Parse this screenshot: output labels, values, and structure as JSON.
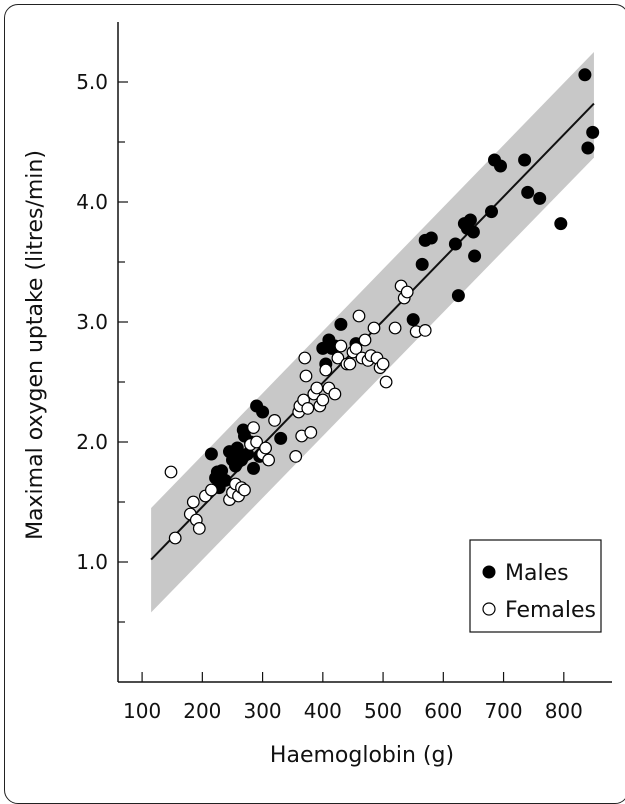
{
  "chart_data": {
    "type": "scatter",
    "xlabel": "Haemoglobin (g)",
    "ylabel": "Maximal oxygen uptake (litres/min)",
    "xlim": [
      60,
      880
    ],
    "ylim": [
      0.0,
      5.5
    ],
    "x_ticks": [
      "100",
      "200",
      "300",
      "400",
      "500",
      "600",
      "700",
      "800"
    ],
    "x_tick_values": [
      100,
      200,
      300,
      400,
      500,
      600,
      700,
      800
    ],
    "y_ticks": [
      "1.0",
      "2.0",
      "3.0",
      "4.0",
      "5.0"
    ],
    "y_tick_values": [
      1.0,
      2.0,
      3.0,
      4.0,
      5.0
    ],
    "y_minor_values": [
      0.5,
      1.5,
      2.5,
      3.5,
      4.5
    ],
    "legend_position": "bottom-right",
    "regression_line": {
      "x": [
        115,
        850
      ],
      "y": [
        1.02,
        4.82
      ]
    },
    "confidence_band": {
      "x": [
        115,
        850
      ],
      "upper": [
        1.45,
        5.25
      ],
      "lower": [
        0.58,
        4.37
      ]
    },
    "colors": {
      "band": "#c8c8c8",
      "males": "#000000",
      "females": "#ffffff"
    },
    "series": [
      {
        "name": "Males",
        "marker": "filled",
        "x": [
          215,
          222,
          225,
          228,
          232,
          238,
          245,
          250,
          255,
          258,
          262,
          265,
          268,
          270,
          275,
          280,
          285,
          290,
          295,
          300,
          330,
          400,
          405,
          410,
          415,
          420,
          430,
          455,
          550,
          565,
          570,
          580,
          620,
          625,
          635,
          640,
          645,
          650,
          652,
          680,
          685,
          695,
          735,
          740,
          760,
          795,
          835,
          840,
          848
        ],
        "y": [
          1.9,
          1.7,
          1.75,
          1.62,
          1.76,
          1.68,
          1.92,
          1.85,
          1.8,
          1.95,
          1.88,
          1.85,
          2.1,
          2.05,
          1.9,
          2.0,
          1.78,
          2.3,
          1.88,
          2.25,
          2.03,
          2.78,
          2.65,
          2.85,
          2.78,
          2.8,
          2.98,
          2.82,
          3.02,
          3.48,
          3.68,
          3.7,
          3.65,
          3.22,
          3.82,
          3.78,
          3.85,
          3.75,
          3.55,
          3.92,
          4.35,
          4.3,
          4.35,
          4.08,
          4.03,
          3.82,
          5.06,
          4.45,
          4.58
        ]
      },
      {
        "name": "Females",
        "marker": "open",
        "x": [
          148,
          155,
          180,
          185,
          190,
          195,
          205,
          215,
          245,
          250,
          255,
          260,
          265,
          270,
          280,
          285,
          290,
          300,
          305,
          310,
          320,
          355,
          360,
          362,
          365,
          368,
          370,
          372,
          375,
          380,
          385,
          390,
          395,
          400,
          405,
          410,
          420,
          425,
          430,
          440,
          445,
          450,
          455,
          460,
          465,
          470,
          475,
          480,
          485,
          490,
          495,
          500,
          505,
          520,
          530,
          535,
          540,
          555,
          570
        ],
        "y": [
          1.75,
          1.2,
          1.4,
          1.5,
          1.35,
          1.28,
          1.55,
          1.6,
          1.52,
          1.58,
          1.65,
          1.55,
          1.62,
          1.6,
          1.98,
          2.12,
          2.0,
          1.9,
          1.95,
          1.85,
          2.18,
          1.88,
          2.25,
          2.3,
          2.05,
          2.35,
          2.7,
          2.55,
          2.28,
          2.08,
          2.4,
          2.45,
          2.3,
          2.35,
          2.6,
          2.45,
          2.4,
          2.7,
          2.8,
          2.65,
          2.65,
          2.75,
          2.78,
          3.05,
          2.7,
          2.85,
          2.68,
          2.72,
          2.95,
          2.7,
          2.62,
          2.65,
          2.5,
          2.95,
          3.3,
          3.2,
          3.25,
          2.92,
          2.93
        ]
      }
    ]
  }
}
